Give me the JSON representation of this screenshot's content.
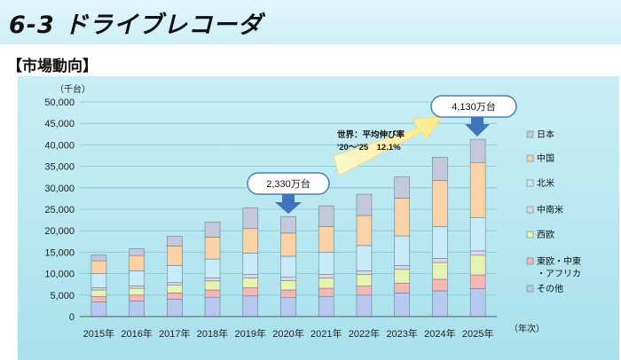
{
  "page": {
    "title": "6-3 ドライブレコーダ",
    "section": "【市場動向】"
  },
  "chart_data": {
    "type": "bar",
    "stacked": true,
    "title": "",
    "xlabel": "（年次）",
    "ylabel": "（千台）",
    "ylim": [
      0,
      50000
    ],
    "yticks": [
      "0",
      "5,000",
      "10,000",
      "15,000",
      "20,000",
      "25,000",
      "30,000",
      "35,000",
      "40,000",
      "45,000",
      "50,000"
    ],
    "categories": [
      "2015年",
      "2016年",
      "2017年",
      "2018年",
      "2019年",
      "2020年",
      "2021年",
      "2022年",
      "2023年",
      "2024年",
      "2025年"
    ],
    "series": [
      {
        "name": "その他",
        "color": "#b7c9ee",
        "values": [
          3400,
          3600,
          4000,
          4500,
          4800,
          4400,
          4700,
          5000,
          5500,
          6000,
          6500
        ]
      },
      {
        "name": "東欧・中東・アフリカ",
        "color": "#f4b7b1",
        "values": [
          1300,
          1400,
          1500,
          1700,
          1900,
          1800,
          1900,
          2100,
          2300,
          2700,
          3200
        ]
      },
      {
        "name": "西欧",
        "color": "#e7f3b1",
        "values": [
          1500,
          1600,
          1800,
          2100,
          2300,
          2200,
          2400,
          2700,
          3200,
          3900,
          4600
        ]
      },
      {
        "name": "中南米",
        "color": "#ddd6ee",
        "values": [
          500,
          550,
          600,
          700,
          800,
          750,
          800,
          850,
          900,
          950,
          1000
        ]
      },
      {
        "name": "北米",
        "color": "#c8ecf7",
        "values": [
          3300,
          3500,
          4000,
          4400,
          5000,
          4900,
          5200,
          5900,
          6900,
          7400,
          7700
        ]
      },
      {
        "name": "中国",
        "color": "#f9d3a6",
        "values": [
          3000,
          3600,
          4500,
          5100,
          5700,
          5400,
          6000,
          7000,
          8800,
          10800,
          12900
        ]
      },
      {
        "name": "日本",
        "color": "#c3c9d8",
        "values": [
          1300,
          1550,
          2300,
          3500,
          4800,
          3850,
          4800,
          4950,
          4900,
          5350,
          5400
        ]
      }
    ],
    "legend": [
      "日本",
      "中国",
      "北米",
      "中南米",
      "西欧",
      "東欧・中東",
      "・アフリカ",
      "その他"
    ],
    "legend_position": "right",
    "annotations": {
      "callout_2020": "2,330万台",
      "callout_2025": "4,130万台",
      "growth_line1": "世界：平均伸び率",
      "growth_line2": "'20～'25　12.1%"
    }
  }
}
